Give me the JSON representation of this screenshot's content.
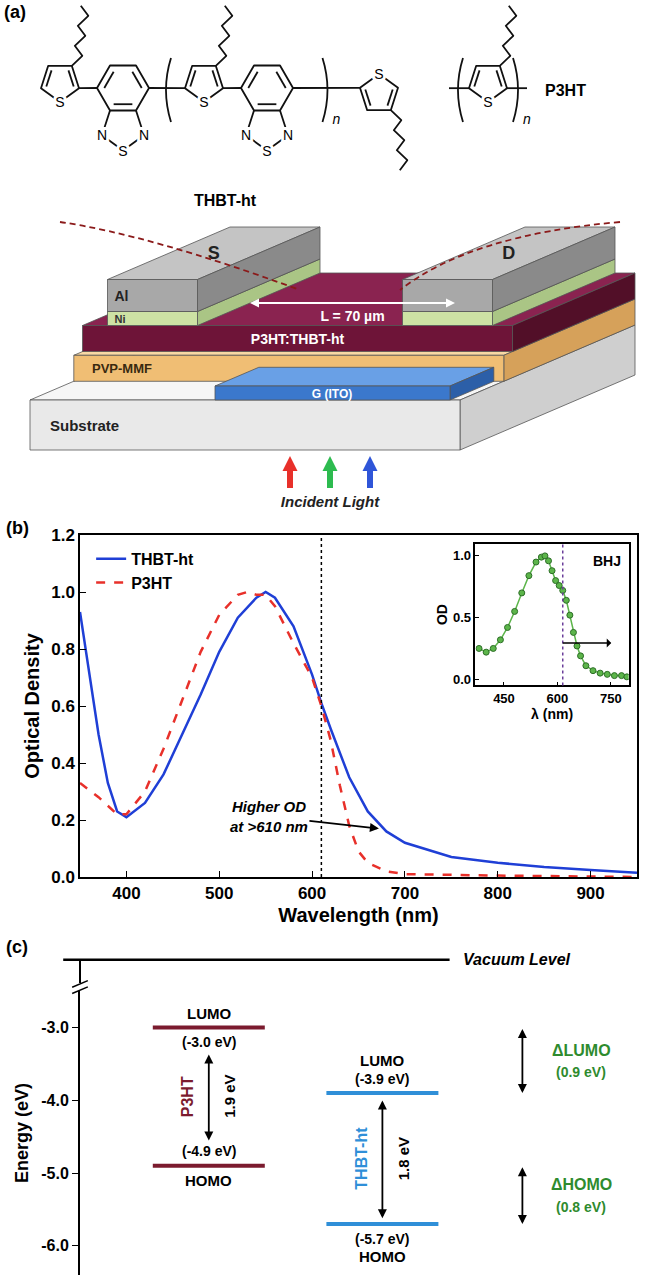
{
  "panel_a": {
    "label": "(a)",
    "structures": [
      {
        "name": "THBT-ht",
        "atom_labels": [
          [
            "S"
          ],
          [
            "N",
            "S",
            "N"
          ],
          [
            "S"
          ],
          [
            "N",
            "S",
            "N"
          ],
          [
            "S"
          ]
        ],
        "repeat": "n"
      },
      {
        "name": "P3HT",
        "atom_labels": [
          [
            "S"
          ]
        ],
        "repeat": "n"
      }
    ],
    "device": {
      "source": "S",
      "drain": "D",
      "contact_layers": [
        "Al",
        "Ni"
      ],
      "channel": "L = 70 µm",
      "active_layer": "P3HT:THBT-ht",
      "dielectric": "PVP-MMF",
      "gate": "G (ITO)",
      "substrate": "Substrate",
      "light": "Incident Light",
      "light_colors": [
        "#e8302a",
        "#2dbb4f",
        "#2f55d8"
      ]
    }
  },
  "chart_data": [
    {
      "type": "line",
      "panel_label": "(b)",
      "xlabel": "Wavelength (nm)",
      "ylabel": "Optical Density",
      "xlim": [
        350,
        950
      ],
      "xticks": [
        400,
        500,
        600,
        700,
        800,
        900
      ],
      "ylim": [
        0,
        1.2
      ],
      "yticks": [
        {
          "value": 0,
          "label": "0.0"
        },
        0.2,
        0.4,
        0.6,
        0.8,
        {
          "value": 1,
          "label": "1.0"
        },
        1.2
      ],
      "grid": false,
      "legend": "upper left",
      "series": [
        {
          "name": "THBT-ht",
          "color": "#1f3fd6",
          "line_style": "solid",
          "x": [
            350,
            360,
            370,
            380,
            390,
            400,
            420,
            440,
            460,
            480,
            500,
            520,
            540,
            550,
            560,
            580,
            600,
            610,
            620,
            640,
            660,
            680,
            700,
            750,
            800,
            850,
            900,
            950
          ],
          "values": [
            0.93,
            0.72,
            0.5,
            0.33,
            0.23,
            0.21,
            0.26,
            0.36,
            0.5,
            0.64,
            0.79,
            0.91,
            0.98,
            1.0,
            0.98,
            0.88,
            0.71,
            0.61,
            0.52,
            0.35,
            0.23,
            0.16,
            0.12,
            0.07,
            0.05,
            0.035,
            0.025,
            0.015
          ]
        },
        {
          "name": "P3HT",
          "color": "#e8302a",
          "line_style": "dash",
          "x": [
            350,
            370,
            390,
            400,
            420,
            440,
            460,
            480,
            500,
            520,
            530,
            540,
            550,
            560,
            580,
            600,
            610,
            620,
            630,
            640,
            650,
            660,
            680,
            700,
            800,
            950
          ],
          "values": [
            0.33,
            0.28,
            0.22,
            0.22,
            0.3,
            0.45,
            0.62,
            0.79,
            0.92,
            0.99,
            1.0,
            0.99,
            0.99,
            0.95,
            0.82,
            0.7,
            0.6,
            0.48,
            0.32,
            0.18,
            0.09,
            0.05,
            0.02,
            0.01,
            0.005,
            0.0
          ]
        }
      ],
      "reference_x": 610,
      "annotations": [
        {
          "text": [
            "Higher OD",
            "at >610 nm"
          ],
          "x": 672,
          "y": 0.17
        }
      ]
    },
    {
      "type": "line",
      "title": "BHJ",
      "xlabel": "λ (nm)",
      "ylabel": "OD",
      "xlim": [
        370,
        800
      ],
      "xticks": [
        450,
        600,
        750
      ],
      "ylim": [
        -0.05,
        1.1
      ],
      "yticks": [
        {
          "value": 0,
          "label": "0.0"
        },
        0.5,
        {
          "value": 1,
          "label": "1.0"
        }
      ],
      "marker": "circle",
      "color": "#5cb54a",
      "x": [
        380,
        400,
        420,
        440,
        460,
        480,
        500,
        520,
        540,
        555,
        565,
        575,
        585,
        595,
        605,
        615,
        625,
        635,
        645,
        655,
        665,
        680,
        700,
        720,
        740,
        760,
        780,
        795
      ],
      "values": [
        0.25,
        0.22,
        0.25,
        0.32,
        0.42,
        0.55,
        0.7,
        0.84,
        0.95,
        0.99,
        1.0,
        0.96,
        0.88,
        0.8,
        0.76,
        0.72,
        0.64,
        0.52,
        0.38,
        0.27,
        0.19,
        0.11,
        0.07,
        0.05,
        0.04,
        0.03,
        0.03,
        0.02
      ],
      "reference_x": 615
    },
    {
      "type": "energy_levels",
      "panel_label": "(c)",
      "ylabel": "Energy (eV)",
      "ylim": [
        -6.4,
        -2.5
      ],
      "yticks": [
        {
          "value": -3,
          "label": "-3.0"
        },
        {
          "value": -4,
          "label": "-4.0"
        },
        {
          "value": -5,
          "label": "-5.0"
        },
        {
          "value": -6,
          "label": "-6.0"
        }
      ],
      "top_label": "Vacuum Level",
      "level_names": [
        "LUMO",
        "HOMO"
      ],
      "materials": [
        {
          "name": "P3HT",
          "color": "#7b1b2e",
          "lumo": -3.0,
          "homo": -4.9,
          "lumo_label": "(-3.0 eV)",
          "homo_label": "(-4.9 eV)",
          "gap": 1.9,
          "gap_label": "1.9 eV"
        },
        {
          "name": "THBT-ht",
          "color": "#2f8fd8",
          "lumo": -3.9,
          "homo": -5.7,
          "lumo_label": "(-3.9 eV)",
          "homo_label": "(-5.7 eV)",
          "gap": 1.8,
          "gap_label": "1.8 eV"
        }
      ],
      "offsets": [
        {
          "name": "ΔLUMO",
          "value": 0.9,
          "label": "(0.9 eV)",
          "color": "#2e8b2e"
        },
        {
          "name": "ΔHOMO",
          "value": 0.8,
          "label": "(0.8 eV)",
          "color": "#2e8b2e"
        }
      ]
    }
  ]
}
